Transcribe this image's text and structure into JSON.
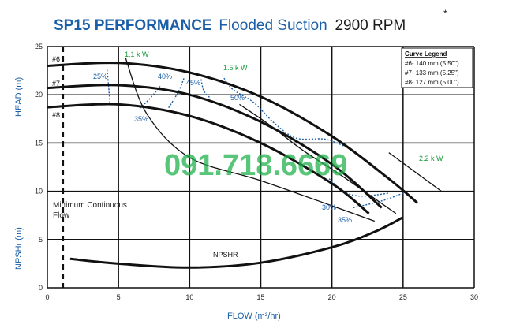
{
  "title": {
    "main": "SP15 PERFORMANCE",
    "sub": "Flooded Suction",
    "rpm": "2900 RPM",
    "asterisk": "*"
  },
  "watermark": "091.718.6669",
  "chart_data": {
    "type": "line",
    "xlabel": "FLOW (m³/hr)",
    "ylabel_top": "HEAD (m)",
    "ylabel_bottom": "NPSHr (m)",
    "xlim": [
      0,
      30
    ],
    "ylim": [
      0,
      25
    ],
    "xticks": [
      "0",
      "5",
      "10",
      "15",
      "20",
      "25",
      "30"
    ],
    "yticks": [
      "0",
      "5",
      "10",
      "15",
      "20",
      "25"
    ],
    "grid": true,
    "legend": {
      "title": "Curve Legend",
      "position": "top-right",
      "entries": [
        "#6- 140 mm (5.50\")",
        "#7- 133 mm (5.25\")",
        "#8- 127 mm (5.00\")"
      ]
    },
    "min_flow": {
      "x": 1.1,
      "label_line1": "Minimum Continuous",
      "label_line2": "Flow"
    },
    "series": [
      {
        "name": "#6",
        "color": "#111111",
        "points": [
          [
            0,
            23.0
          ],
          [
            5,
            23.3
          ],
          [
            10,
            22.3
          ],
          [
            15,
            19.8
          ],
          [
            20,
            15.7
          ],
          [
            24,
            11.3
          ],
          [
            26,
            8.8
          ]
        ]
      },
      {
        "name": "#7",
        "color": "#111111",
        "points": [
          [
            0,
            20.7
          ],
          [
            5,
            21.0
          ],
          [
            10,
            20.0
          ],
          [
            15,
            17.2
          ],
          [
            20,
            12.8
          ],
          [
            23.5,
            8.3
          ]
        ]
      },
      {
        "name": "#8",
        "color": "#111111",
        "points": [
          [
            0,
            18.7
          ],
          [
            5,
            19.0
          ],
          [
            10,
            17.8
          ],
          [
            15,
            15.0
          ],
          [
            20,
            10.8
          ],
          [
            22.6,
            7.7
          ]
        ]
      },
      {
        "name": "NPSHR",
        "color": "#111111",
        "points": [
          [
            1.6,
            3.0
          ],
          [
            5,
            2.5
          ],
          [
            10,
            2.1
          ],
          [
            15,
            2.6
          ],
          [
            20,
            4.2
          ],
          [
            23,
            5.8
          ],
          [
            25,
            7.3
          ]
        ]
      }
    ],
    "power_curves": [
      {
        "label": "1.1 k W",
        "points": [
          [
            5.5,
            23.8
          ],
          [
            7,
            18
          ],
          [
            10,
            13.5
          ],
          [
            15,
            11.1
          ],
          [
            20,
            8.5
          ],
          [
            23,
            6.9
          ]
        ]
      },
      {
        "label": "1.5 k W",
        "points": [
          [
            13.5,
            19
          ],
          [
            15.5,
            17
          ],
          [
            18,
            14.2
          ],
          [
            20.5,
            11.8
          ],
          [
            24.5,
            7.7
          ]
        ]
      },
      {
        "label": "2.2 k W",
        "points": [
          [
            24,
            14
          ],
          [
            27.7,
            10
          ]
        ]
      }
    ],
    "efficiency_labels": [
      "25%",
      "40%",
      "45%",
      "50%",
      "35%",
      "30%",
      "35%"
    ],
    "npshr_label": "NPSHR"
  }
}
